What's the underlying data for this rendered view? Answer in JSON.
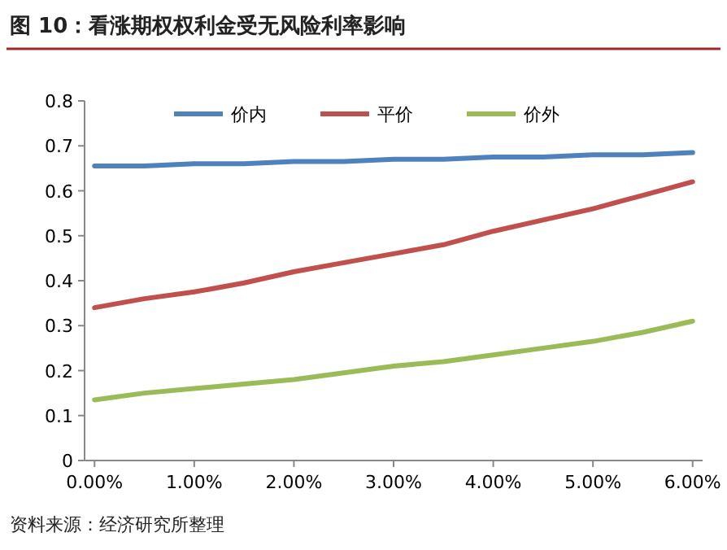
{
  "chart_data": {
    "type": "line",
    "title": "图 10：看涨期权权利金受无风险利率影响",
    "x": [
      0,
      0.5,
      1,
      1.5,
      2,
      2.5,
      3,
      3.5,
      4,
      4.5,
      5,
      5.5,
      6
    ],
    "series": [
      {
        "name": "价内",
        "color": "#4f81bd",
        "values": [
          0.655,
          0.655,
          0.66,
          0.66,
          0.665,
          0.665,
          0.67,
          0.67,
          0.675,
          0.675,
          0.68,
          0.68,
          0.685
        ]
      },
      {
        "name": "平价",
        "color": "#c0504d",
        "values": [
          0.34,
          0.36,
          0.375,
          0.395,
          0.42,
          0.44,
          0.46,
          0.48,
          0.51,
          0.535,
          0.56,
          0.59,
          0.62
        ]
      },
      {
        "name": "价外",
        "color": "#9bbb59",
        "values": [
          0.135,
          0.15,
          0.16,
          0.17,
          0.18,
          0.195,
          0.21,
          0.22,
          0.235,
          0.25,
          0.265,
          0.285,
          0.31
        ]
      }
    ],
    "xlim": [
      -0.1,
      6.1
    ],
    "xticks": [
      {
        "value": 0,
        "label": "0.00%"
      },
      {
        "value": 1,
        "label": "1.00%"
      },
      {
        "value": 2,
        "label": "2.00%"
      },
      {
        "value": 3,
        "label": "3.00%"
      },
      {
        "value": 4,
        "label": "4.00%"
      },
      {
        "value": 5,
        "label": "5.00%"
      },
      {
        "value": 6,
        "label": "6.00%"
      }
    ],
    "ylim": [
      0,
      0.8
    ],
    "yticks": [
      0,
      0.1,
      0.2,
      0.3,
      0.4,
      0.5,
      0.6,
      0.7,
      0.8
    ],
    "legend": "top",
    "marker": "none",
    "line_style": "solid",
    "annotations": [
      "资料来源：经济研究所整理"
    ]
  }
}
